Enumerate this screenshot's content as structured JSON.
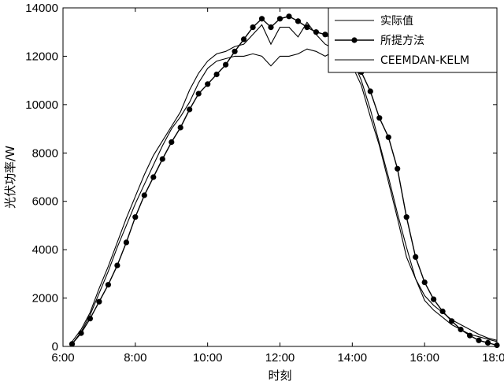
{
  "chart_data": {
    "type": "line",
    "xlabel": "时刻",
    "ylabel": "光伏功率/W",
    "xlim": [
      6,
      18
    ],
    "ylim": [
      0,
      14000
    ],
    "x_ticks": [
      6,
      8,
      10,
      12,
      14,
      16,
      18
    ],
    "x_tick_labels": [
      "6:00",
      "8:00",
      "10:00",
      "12:00",
      "14:00",
      "16:00",
      "18:00"
    ],
    "y_ticks": [
      0,
      2000,
      4000,
      6000,
      8000,
      10000,
      12000,
      14000
    ],
    "y_tick_labels": [
      "0",
      "2000",
      "4000",
      "6000",
      "8000",
      "10000",
      "12000",
      "14000"
    ],
    "legend_position": "top-right",
    "series": [
      {
        "name": "实际值",
        "style": "thin-line",
        "color": "#000000",
        "x": [
          6.25,
          6.5,
          6.75,
          7.0,
          7.25,
          7.5,
          7.75,
          8.0,
          8.25,
          8.5,
          8.75,
          9.0,
          9.25,
          9.5,
          9.75,
          10.0,
          10.25,
          10.5,
          10.75,
          11.0,
          11.25,
          11.5,
          11.75,
          12.0,
          12.25,
          12.5,
          12.75,
          13.0,
          13.25,
          13.5,
          13.75,
          14.0,
          14.25,
          14.5,
          14.75,
          15.0,
          15.25,
          15.5,
          15.75,
          16.0,
          16.25,
          16.5,
          16.75,
          17.0,
          17.25,
          17.5,
          17.75,
          18.0
        ],
        "y": [
          200,
          700,
          1400,
          2400,
          3300,
          4300,
          5300,
          6200,
          7100,
          7900,
          8500,
          9100,
          9700,
          10600,
          11300,
          11800,
          12100,
          12200,
          12400,
          12500,
          12900,
          13300,
          12500,
          13200,
          13200,
          12800,
          13400,
          12900,
          12500,
          12300,
          12200,
          11900,
          11000,
          9800,
          8400,
          7000,
          5500,
          4100,
          2800,
          1900,
          1500,
          1200,
          900,
          700,
          500,
          400,
          300,
          200
        ]
      },
      {
        "name": "所提方法",
        "style": "line-with-dots",
        "color": "#000000",
        "x": [
          6.25,
          6.5,
          6.75,
          7.0,
          7.25,
          7.5,
          7.75,
          8.0,
          8.25,
          8.5,
          8.75,
          9.0,
          9.25,
          9.5,
          9.75,
          10.0,
          10.25,
          10.5,
          10.75,
          11.0,
          11.25,
          11.5,
          11.75,
          12.0,
          12.25,
          12.5,
          12.75,
          13.0,
          13.25,
          13.5,
          13.75,
          14.0,
          14.25,
          14.5,
          14.75,
          15.0,
          15.25,
          15.5,
          15.75,
          16.0,
          16.25,
          16.5,
          16.75,
          17.0,
          17.25,
          17.5,
          17.75,
          18.0
        ],
        "y": [
          100,
          550,
          1150,
          1850,
          2550,
          3350,
          4300,
          5350,
          6250,
          7000,
          7750,
          8450,
          9050,
          9800,
          10450,
          10850,
          11250,
          11650,
          12200,
          12700,
          13200,
          13550,
          13200,
          13550,
          13650,
          13450,
          13200,
          13000,
          12900,
          12650,
          12400,
          12050,
          11350,
          10550,
          9450,
          8650,
          7350,
          5350,
          3700,
          2650,
          1950,
          1450,
          1050,
          700,
          450,
          250,
          150,
          50
        ]
      },
      {
        "name": "CEEMDAN-KELM",
        "style": "thin-line",
        "color": "#000000",
        "x": [
          6.25,
          6.5,
          6.75,
          7.0,
          7.25,
          7.5,
          7.75,
          8.0,
          8.25,
          8.5,
          8.75,
          9.0,
          9.25,
          9.5,
          9.75,
          10.0,
          10.25,
          10.5,
          10.75,
          11.0,
          11.25,
          11.5,
          11.75,
          12.0,
          12.25,
          12.5,
          12.75,
          13.0,
          13.25,
          13.5,
          13.75,
          14.0,
          14.25,
          14.5,
          14.75,
          15.0,
          15.25,
          15.5,
          15.75,
          16.0,
          16.25,
          16.5,
          16.75,
          17.0,
          17.25,
          17.5,
          17.75,
          18.0
        ],
        "y": [
          100,
          600,
          1300,
          2200,
          3100,
          4100,
          5000,
          5900,
          6700,
          7500,
          8300,
          9000,
          9500,
          10100,
          10900,
          11500,
          11800,
          11900,
          12000,
          12000,
          12100,
          12000,
          11600,
          12000,
          12000,
          12100,
          12300,
          12200,
          12000,
          12200,
          11900,
          11600,
          10800,
          9500,
          8300,
          6800,
          5300,
          3700,
          2800,
          2100,
          1700,
          1400,
          1100,
          900,
          700,
          500,
          350,
          250
        ]
      }
    ]
  }
}
